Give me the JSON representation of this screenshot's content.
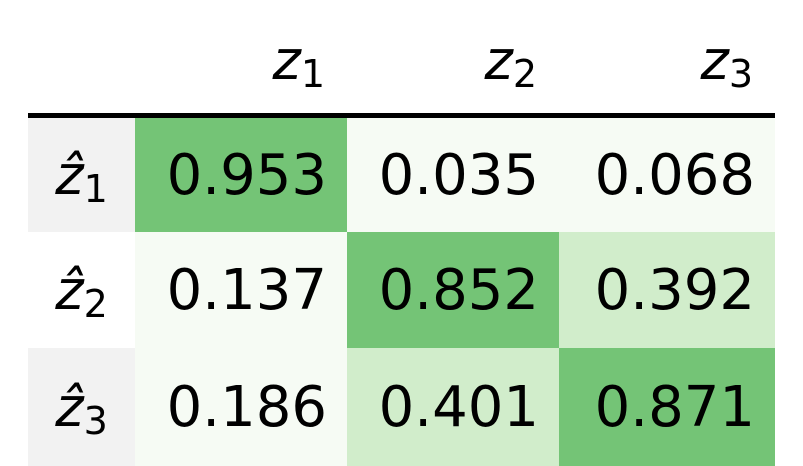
{
  "table": {
    "columns": [
      {
        "symbol": "z",
        "index": "1"
      },
      {
        "symbol": "z",
        "index": "2"
      },
      {
        "symbol": "z",
        "index": "3"
      }
    ],
    "rows": [
      {
        "symbol": "ẑ",
        "index": "1",
        "values": [
          "0.953",
          "0.035",
          "0.068"
        ]
      },
      {
        "symbol": "ẑ",
        "index": "2",
        "values": [
          "0.137",
          "0.852",
          "0.392"
        ]
      },
      {
        "symbol": "ẑ",
        "index": "3",
        "values": [
          "0.186",
          "0.401",
          "0.871"
        ]
      }
    ]
  }
}
